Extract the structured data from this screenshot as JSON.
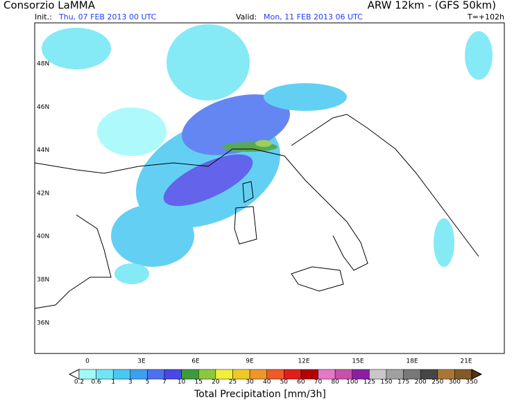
{
  "header": {
    "left_title": "Consorzio LaMMA",
    "right_title": "ARW 12km - (GFS 50km)",
    "init_label": "Init.:",
    "init": "Thu, 07 FEB 2013 00 UTC",
    "valid_label": "Valid:",
    "valid": "Mon, 11 FEB 2013 06 UTC",
    "lead": "T=+102h"
  },
  "map": {
    "lat_labels": [
      "48N",
      "46N",
      "44N",
      "42N",
      "40N",
      "38N",
      "36N"
    ],
    "lon_labels": [
      "0",
      "3E",
      "6E",
      "9E",
      "12E",
      "15E",
      "18E",
      "21E"
    ]
  },
  "colorbar": {
    "title": "Total Precipitation [mm/3h]",
    "levels": [
      0.2,
      0.6,
      1,
      3,
      5,
      7,
      10,
      15,
      20,
      25,
      30,
      40,
      50,
      60,
      70,
      80,
      100,
      125,
      150,
      175,
      200,
      250,
      300,
      350
    ],
    "under_color": "#ffffff",
    "colors": [
      "#a0fafa",
      "#70e6f5",
      "#48c8f2",
      "#3ca0f0",
      "#4a72f0",
      "#4848e8",
      "#3c9a3c",
      "#8cc83c",
      "#f0f03c",
      "#f0c828",
      "#f09628",
      "#f05a28",
      "#e01e1e",
      "#b40000",
      "#e678c8",
      "#c850aa",
      "#8c1ea0",
      "#c8c8c8",
      "#a0a0a0",
      "#787878",
      "#464646",
      "#a87832",
      "#825a28"
    ],
    "over_color": "#5a3214"
  }
}
